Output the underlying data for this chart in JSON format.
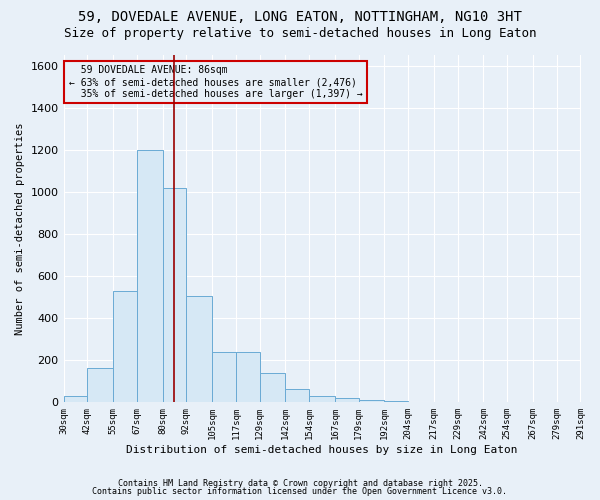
{
  "title1": "59, DOVEDALE AVENUE, LONG EATON, NOTTINGHAM, NG10 3HT",
  "title2": "Size of property relative to semi-detached houses in Long Eaton",
  "xlabel": "Distribution of semi-detached houses by size in Long Eaton",
  "ylabel": "Number of semi-detached properties",
  "bin_edges": [
    30,
    42,
    55,
    67,
    80,
    92,
    105,
    117,
    129,
    142,
    154,
    167,
    179,
    192,
    204,
    217,
    229,
    242,
    254,
    267,
    279
  ],
  "bar_heights": [
    30,
    165,
    530,
    1200,
    1020,
    505,
    240,
    240,
    140,
    65,
    30,
    20,
    10,
    5,
    0,
    0,
    0,
    0,
    0,
    0
  ],
  "bar_color": "#d6e8f5",
  "bar_edge_color": "#6aaad4",
  "bg_color": "#e8f0f8",
  "property_size": 86,
  "property_label": "59 DOVEDALE AVENUE: 86sqm",
  "pct_smaller": 63,
  "pct_smaller_n": 2476,
  "pct_larger": 35,
  "pct_larger_n": 1397,
  "annotation_box_color": "#cc0000",
  "vline_color": "#990000",
  "footer1": "Contains HM Land Registry data © Crown copyright and database right 2025.",
  "footer2": "Contains public sector information licensed under the Open Government Licence v3.0.",
  "ylim": [
    0,
    1650
  ],
  "yticks": [
    0,
    200,
    400,
    600,
    800,
    1000,
    1200,
    1400,
    1600
  ],
  "title_fontsize": 10,
  "subtitle_fontsize": 9
}
